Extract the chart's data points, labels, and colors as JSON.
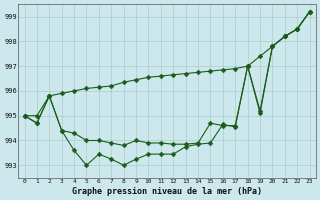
{
  "title": "Graphe pression niveau de la mer (hPa)",
  "ylim": [
    992.5,
    999.5
  ],
  "xlim": [
    -0.5,
    23.5
  ],
  "yticks": [
    993,
    994,
    995,
    996,
    997,
    998,
    999
  ],
  "xticks": [
    0,
    1,
    2,
    3,
    4,
    5,
    6,
    7,
    8,
    9,
    10,
    11,
    12,
    13,
    14,
    15,
    16,
    17,
    18,
    19,
    20,
    21,
    22,
    23
  ],
  "bg_color": "#cce8ec",
  "grid_color": "#aacccc",
  "line_color": "#1a5c1a",
  "series_top": [
    995.0,
    995.0,
    995.8,
    995.9,
    996.0,
    996.1,
    996.15,
    996.2,
    996.35,
    996.45,
    996.55,
    996.6,
    996.65,
    996.7,
    996.75,
    996.8,
    996.85,
    996.9,
    997.0,
    997.4,
    997.8,
    998.2,
    998.5,
    999.2
  ],
  "series_mid": [
    995.0,
    994.7,
    995.8,
    994.4,
    994.3,
    994.0,
    994.0,
    993.9,
    993.8,
    994.0,
    993.9,
    993.9,
    993.85,
    993.85,
    993.9,
    994.7,
    994.6,
    994.6,
    997.0,
    995.2,
    997.8,
    998.2,
    998.5,
    999.2
  ],
  "series_bot": [
    995.0,
    994.7,
    995.8,
    994.4,
    993.6,
    993.0,
    993.45,
    993.25,
    993.0,
    993.25,
    993.45,
    993.45,
    993.45,
    993.75,
    993.85,
    993.9,
    994.65,
    994.55,
    997.0,
    995.1,
    997.8,
    998.2,
    998.5,
    999.2
  ]
}
